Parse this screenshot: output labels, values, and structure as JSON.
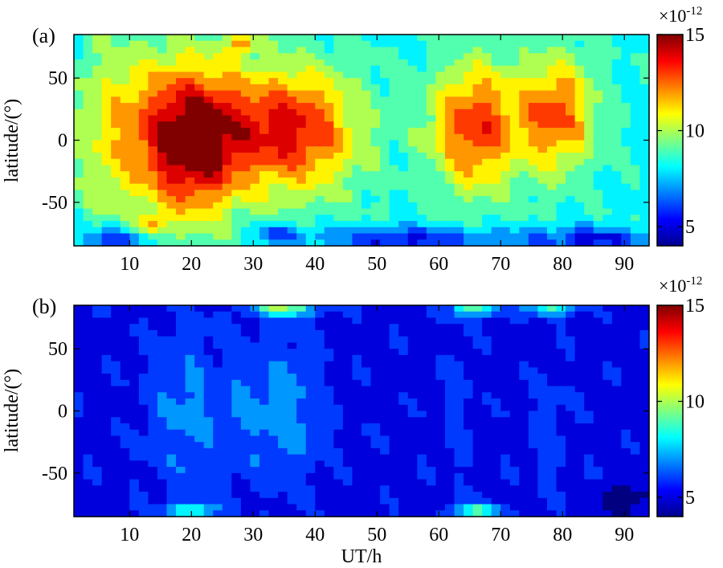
{
  "chart_data": [
    {
      "type": "heatmap",
      "panel_label": "(a)",
      "xlabel": "",
      "ylabel": "latitude/(°)",
      "xlim": [
        1,
        94
      ],
      "ylim": [
        -85,
        85
      ],
      "x_ticks": [
        "10",
        "20",
        "30",
        "40",
        "50",
        "60",
        "70",
        "80",
        "90"
      ],
      "y_ticks": [
        "50",
        "0",
        "-50"
      ],
      "colorbar": {
        "multiplier_base": "×10",
        "multiplier_exp": "-12",
        "min": 4,
        "max": 15,
        "ticks": [
          "15",
          "10",
          "5"
        ]
      },
      "blobs": [
        {
          "x": 20,
          "y": 0,
          "rx": 8,
          "ry": 60,
          "v": 7.0
        },
        {
          "x": 36,
          "y": 8,
          "rx": 11,
          "ry": 50,
          "v": 5.5
        },
        {
          "x": 66,
          "y": 10,
          "rx": 7,
          "ry": 50,
          "v": 5.0
        },
        {
          "x": 79,
          "y": 20,
          "rx": 6,
          "ry": 45,
          "v": 4.5
        },
        {
          "x": 8,
          "y": 10,
          "rx": 8,
          "ry": 70,
          "v": 2.5
        },
        {
          "x": 14,
          "y": -68,
          "rx": 2,
          "ry": 9,
          "v": 2.5
        },
        {
          "x": 28,
          "y": 78,
          "rx": 2,
          "ry": 9,
          "v": 3.5
        },
        {
          "x": 55,
          "y": -80,
          "rx": 15,
          "ry": 10,
          "v": -3.0
        },
        {
          "x": 85,
          "y": -80,
          "rx": 10,
          "ry": 10,
          "v": -3.0
        },
        {
          "x": 8,
          "y": -80,
          "rx": 6,
          "ry": 10,
          "v": -3.0
        },
        {
          "x": 34,
          "y": -75,
          "rx": 4,
          "ry": 8,
          "v": -2.5
        }
      ]
    },
    {
      "type": "heatmap",
      "panel_label": "(b)",
      "xlabel": "UT/h",
      "ylabel": "latitude/(°)",
      "xlim": [
        1,
        94
      ],
      "ylim": [
        -85,
        85
      ],
      "x_ticks": [
        "10",
        "20",
        "30",
        "40",
        "50",
        "60",
        "70",
        "80",
        "90"
      ],
      "y_ticks": [
        "50",
        "0",
        "-50"
      ],
      "colorbar": {
        "multiplier_base": "×10",
        "multiplier_exp": "-12",
        "min": 4,
        "max": 15,
        "ticks": [
          "15",
          "10",
          "5"
        ]
      },
      "blobs": [
        {
          "x": 19,
          "y": 0,
          "rx": 6,
          "ry": 65,
          "v": 1.6
        },
        {
          "x": 35,
          "y": 0,
          "rx": 6,
          "ry": 55,
          "v": 1.8
        },
        {
          "x": 28,
          "y": 0,
          "rx": 3,
          "ry": 60,
          "v": 0.8
        },
        {
          "x": 63,
          "y": 0,
          "rx": 2,
          "ry": 55,
          "v": 0.9
        },
        {
          "x": 78,
          "y": -20,
          "rx": 3,
          "ry": 40,
          "v": 0.9
        },
        {
          "x": 35,
          "y": 82,
          "rx": 5,
          "ry": 6,
          "v": 4.5
        },
        {
          "x": 66,
          "y": 82,
          "rx": 4,
          "ry": 6,
          "v": 4.0
        },
        {
          "x": 78,
          "y": 82,
          "rx": 4,
          "ry": 6,
          "v": 3.5
        },
        {
          "x": 20,
          "y": -80,
          "rx": 4,
          "ry": 6,
          "v": 3.5
        },
        {
          "x": 66,
          "y": -80,
          "rx": 4,
          "ry": 6,
          "v": 3.5
        },
        {
          "x": 90,
          "y": -70,
          "rx": 5,
          "ry": 12,
          "v": -1.5
        }
      ]
    }
  ]
}
